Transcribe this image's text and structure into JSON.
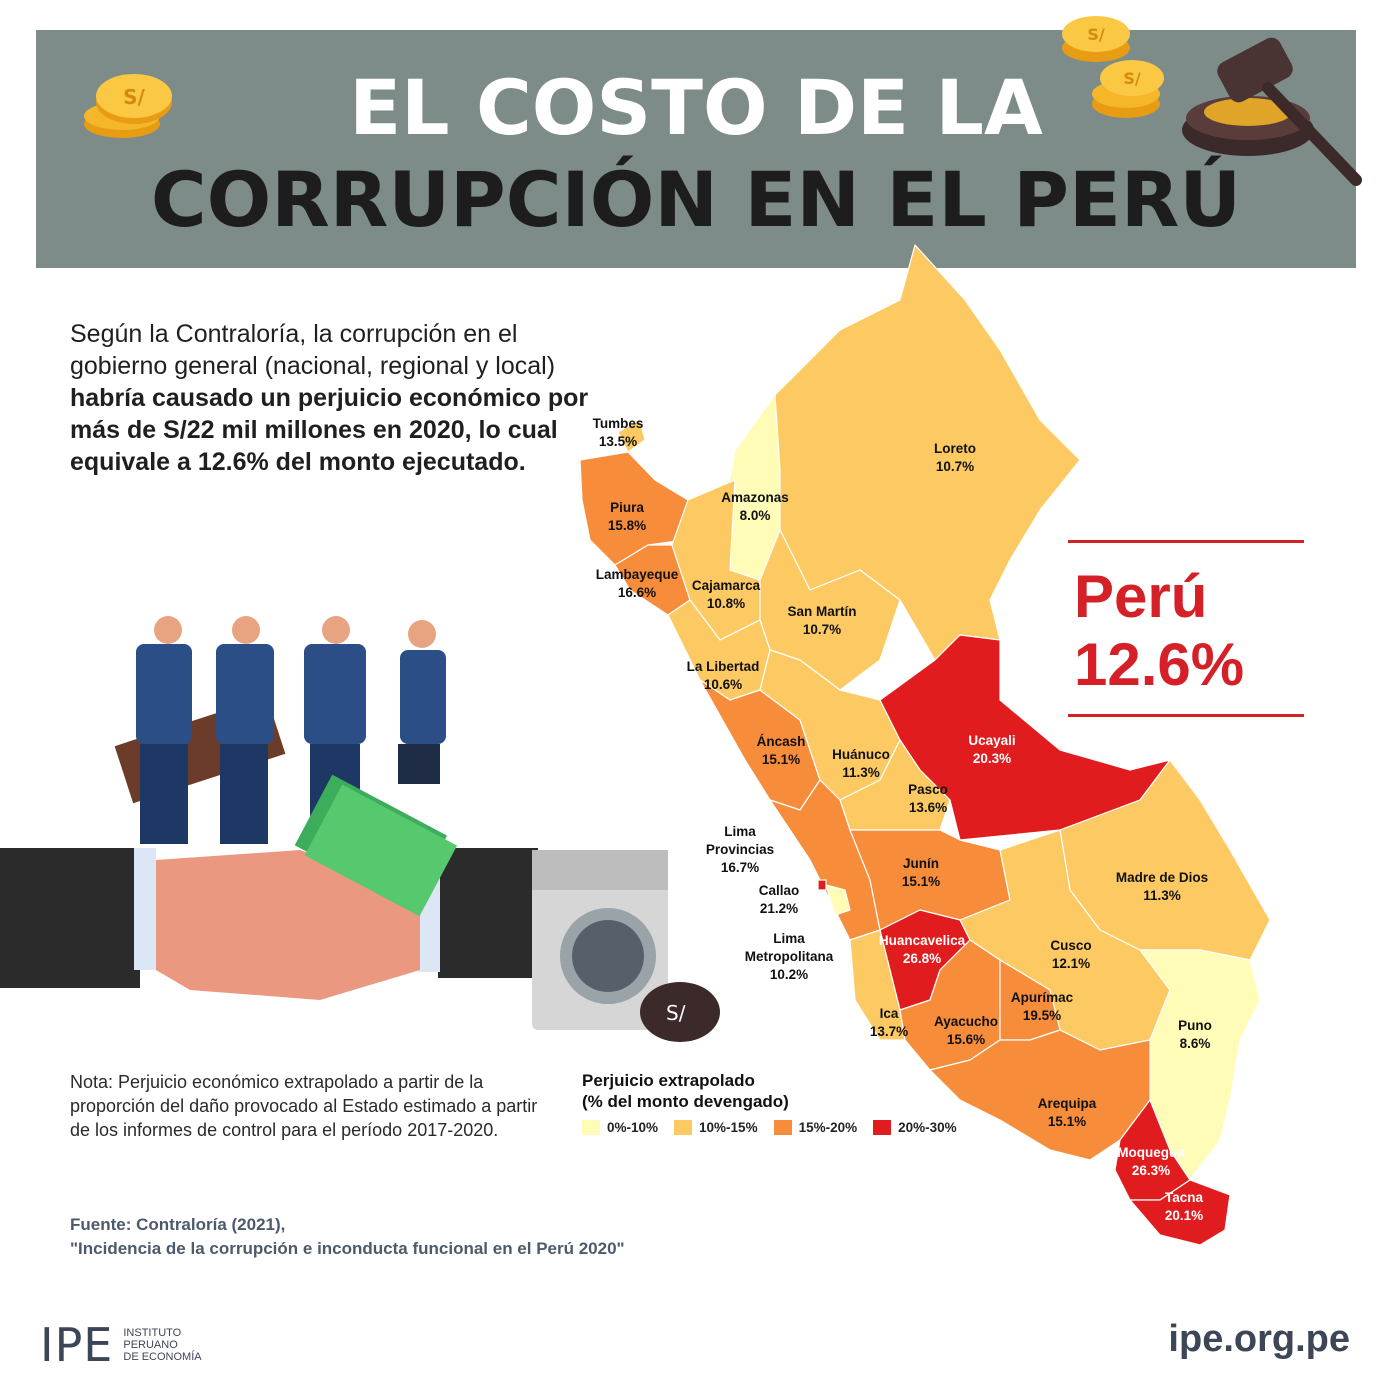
{
  "header": {
    "title_line_1": "EL COSTO DE LA",
    "title_line_2": "CORRUPCIÓN EN EL PERÚ",
    "icons": [
      "coin-stack-icon",
      "gavel-icon"
    ]
  },
  "intro": {
    "plain": "Según la Contraloría, la corrupción en el gobierno general (nacional, regional y local) ",
    "bold": "habría causado un perjuicio económico por más de S/22 mil millones en 2020, lo cual equivale a 12.6% del monto ejecutado."
  },
  "national": {
    "name": "Perú",
    "value": "12.6%"
  },
  "colors": {
    "bin_0_10": "#fefcb6",
    "bin_10_15": "#fdc962",
    "bin_15_20": "#f78c3a",
    "bin_20_30": "#e11c1e",
    "accent_red": "#d42026",
    "header_bg": "#7d8b89"
  },
  "legend": {
    "title": "Perjuicio extrapolado\n(% del  monto devengado)",
    "items": [
      {
        "label": "0%-10%",
        "color": "#fefcb6"
      },
      {
        "label": "10%-15%",
        "color": "#fdc962"
      },
      {
        "label": "15%-20%",
        "color": "#f78c3a"
      },
      {
        "label": "20%-30%",
        "color": "#e11c1e"
      }
    ]
  },
  "regions": [
    {
      "name": "Tumbes",
      "value": "13.5%"
    },
    {
      "name": "Piura",
      "value": "15.8%"
    },
    {
      "name": "Lambayeque",
      "value": "16.6%"
    },
    {
      "name": "Amazonas",
      "value": "8.0%"
    },
    {
      "name": "Cajamarca",
      "value": "10.8%"
    },
    {
      "name": "Loreto",
      "value": "10.7%"
    },
    {
      "name": "San Martín",
      "value": "10.7%"
    },
    {
      "name": "La Libertad",
      "value": "10.6%"
    },
    {
      "name": "Áncash",
      "value": "15.1%"
    },
    {
      "name": "Huánuco",
      "value": "11.3%"
    },
    {
      "name": "Ucayali",
      "value": "20.3%"
    },
    {
      "name": "Pasco",
      "value": "13.6%"
    },
    {
      "name": "Lima Provincias",
      "value": "16.7%"
    },
    {
      "name": "Callao",
      "value": "21.2%"
    },
    {
      "name": "Lima Metropolitana",
      "value": "10.2%"
    },
    {
      "name": "Junín",
      "value": "15.1%"
    },
    {
      "name": "Madre de Dios",
      "value": "11.3%"
    },
    {
      "name": "Huancavelica",
      "value": "26.8%"
    },
    {
      "name": "Cusco",
      "value": "12.1%"
    },
    {
      "name": "Ica",
      "value": "13.7%"
    },
    {
      "name": "Ayacucho",
      "value": "15.6%"
    },
    {
      "name": "Apurímac",
      "value": "19.5%"
    },
    {
      "name": "Puno",
      "value": "8.6%"
    },
    {
      "name": "Arequipa",
      "value": "15.1%"
    },
    {
      "name": "Moquegua",
      "value": "26.3%"
    },
    {
      "name": "Tacna",
      "value": "20.1%"
    }
  ],
  "note": "Nota: Perjuicio económico extrapolado a partir de la proporción del daño provocado al Estado estimado a partir de los informes de control para el período 2017-2020.",
  "source": {
    "line_1": "Fuente: Contraloría (2021),",
    "line_2": "\"Incidencia de la corrupción e inconducta funcional en el Perú 2020\""
  },
  "footer": {
    "logo_letters": "IPE",
    "logo_name": "INSTITUTO\nPERUANO\nDE ECONOMÍA",
    "url": "ipe.org.pe"
  },
  "illustration_icons": [
    "businesspeople-illustration",
    "handshake-money-illustration",
    "washing-machine-illustration",
    "money-bag-icon"
  ]
}
